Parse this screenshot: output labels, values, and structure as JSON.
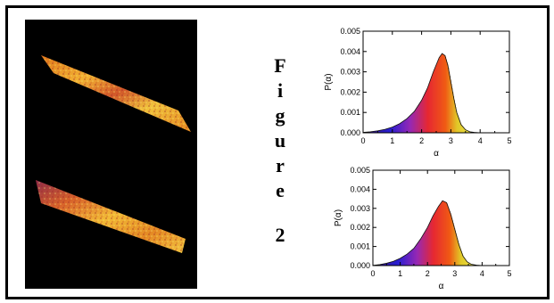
{
  "figure_label": [
    "F",
    "i",
    "g",
    "u",
    "r",
    "e",
    "2"
  ],
  "chart_data": [
    {
      "type": "area",
      "title": "",
      "xlabel": "α",
      "ylabel": "P(α)",
      "xlim": [
        0,
        5
      ],
      "ylim": [
        0,
        0.005
      ],
      "x_ticks": [
        "0",
        "1",
        "2",
        "3",
        "4",
        "5"
      ],
      "y_ticks": [
        "0.000",
        "0.001",
        "0.002",
        "0.003",
        "0.004",
        "0.005"
      ],
      "x": [
        0.0,
        0.25,
        0.5,
        0.75,
        1.0,
        1.25,
        1.5,
        1.75,
        2.0,
        2.2,
        2.4,
        2.6,
        2.7,
        2.8,
        2.9,
        3.0,
        3.1,
        3.2,
        3.35,
        3.5,
        3.65,
        3.8,
        4.0
      ],
      "values": [
        2e-05,
        5e-05,
        0.0001,
        0.00017,
        0.00028,
        0.00045,
        0.0007,
        0.00105,
        0.0016,
        0.0022,
        0.003,
        0.0037,
        0.0039,
        0.0038,
        0.0033,
        0.0025,
        0.0017,
        0.001,
        0.0004,
        0.00015,
        5e-05,
        2e-05,
        0.0
      ]
    },
    {
      "type": "area",
      "title": "",
      "xlabel": "α",
      "ylabel": "P(α)",
      "xlim": [
        0,
        5
      ],
      "ylim": [
        0,
        0.005
      ],
      "x_ticks": [
        "0",
        "1",
        "2",
        "3",
        "4",
        "5"
      ],
      "y_ticks": [
        "0.000",
        "0.001",
        "0.002",
        "0.003",
        "0.004",
        "0.005"
      ],
      "x": [
        0.0,
        0.25,
        0.5,
        0.75,
        1.0,
        1.25,
        1.5,
        1.75,
        2.0,
        2.2,
        2.4,
        2.55,
        2.7,
        2.85,
        3.0,
        3.15,
        3.3,
        3.45,
        3.6,
        3.8,
        4.0
      ],
      "values": [
        1e-05,
        5e-05,
        0.00012,
        0.00022,
        0.00038,
        0.0006,
        0.0009,
        0.0014,
        0.002,
        0.0026,
        0.0031,
        0.0034,
        0.0033,
        0.0027,
        0.0019,
        0.0011,
        0.0005,
        0.0002,
        7e-05,
        2e-05,
        0.0
      ]
    }
  ]
}
